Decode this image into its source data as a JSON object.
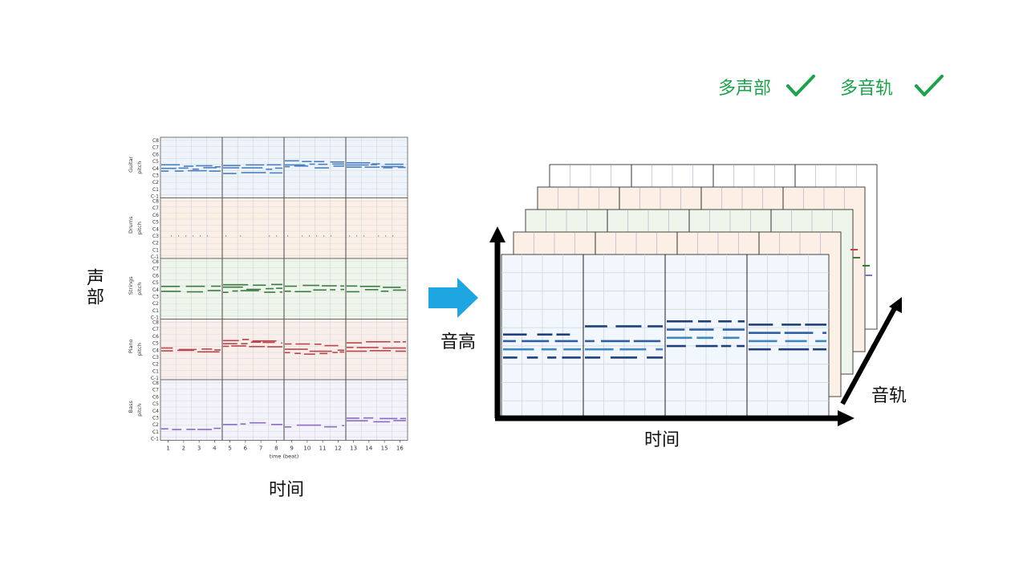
{
  "features": {
    "multi_part": {
      "label": "多声部",
      "icon": "checkmark-icon"
    },
    "multi_track": {
      "label": "多音轨",
      "icon": "checkmark-icon"
    }
  },
  "left_roll": {
    "parts": [
      {
        "name": "Guitar",
        "color": "#4a7fc0",
        "bg": "#eef4fb"
      },
      {
        "name": "Drums",
        "color": "#c08a6a",
        "bg": "#fbefe6"
      },
      {
        "name": "Strings",
        "color": "#3d7a40",
        "bg": "#eef6ec"
      },
      {
        "name": "Piano",
        "color": "#b8454a",
        "bg": "#faeeea"
      },
      {
        "name": "Bass",
        "color": "#8a6cc4",
        "bg": "#f4f2fa"
      }
    ],
    "pitch_label": "pitch",
    "pitch_ticks": [
      "C8",
      "C7",
      "C6",
      "C5",
      "C4",
      "C3",
      "C2",
      "C1",
      "C-1"
    ],
    "x_ticks": [
      "1",
      "2",
      "3",
      "4",
      "5",
      "6",
      "7",
      "8",
      "9",
      "10",
      "11",
      "12",
      "13",
      "14",
      "15",
      "16"
    ],
    "x_label": "time (beat)",
    "side_label": "声部",
    "bottom_label": "时间"
  },
  "right_stack": {
    "axis_labels": {
      "pitch": "音高",
      "time": "时间",
      "track": "音轨"
    },
    "layer_colors": [
      "#ffffff",
      "#fbefe6",
      "#eef6ec",
      "#fbefe6",
      "#f2f7fd"
    ]
  },
  "arrow": {
    "icon": "right-arrow-icon",
    "color": "#1ea6e0"
  }
}
